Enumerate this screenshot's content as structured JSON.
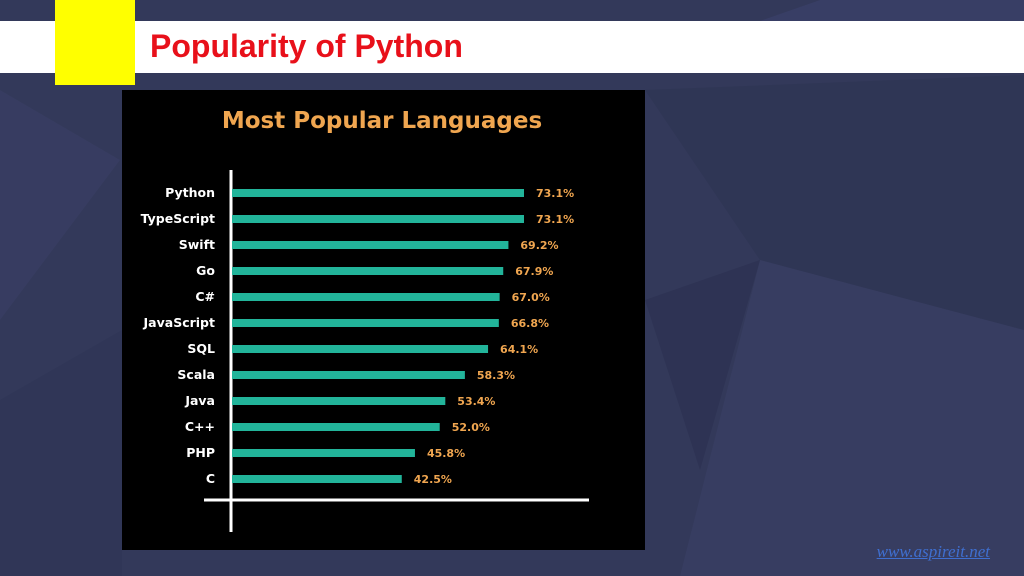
{
  "slide": {
    "title": "Popularity of Python",
    "website": "www.aspireit.net"
  },
  "colors": {
    "background": "#33395a",
    "title": "#e8101a",
    "accent_block": "#ffff00",
    "bar": "#22b49a",
    "value_label": "#f0a650",
    "chart_title": "#f0a650",
    "chart_background": "#000000"
  },
  "chart_data": {
    "type": "bar",
    "orientation": "horizontal",
    "title": "Most Popular Languages",
    "categories": [
      "Python",
      "TypeScript",
      "Swift",
      "Go",
      "C#",
      "JavaScript",
      "SQL",
      "Scala",
      "Java",
      "C++",
      "PHP",
      "C"
    ],
    "values": [
      73.1,
      73.1,
      69.2,
      67.9,
      67.0,
      66.8,
      64.1,
      58.3,
      53.4,
      52.0,
      45.8,
      42.5
    ],
    "value_labels": [
      "73.1%",
      "73.1%",
      "69.2%",
      "67.9%",
      "67.0%",
      "66.8%",
      "64.1%",
      "58.3%",
      "53.4%",
      "52.0%",
      "45.8%",
      "42.5%"
    ],
    "xlabel": "",
    "ylabel": "",
    "grid": false,
    "legend": "none"
  }
}
